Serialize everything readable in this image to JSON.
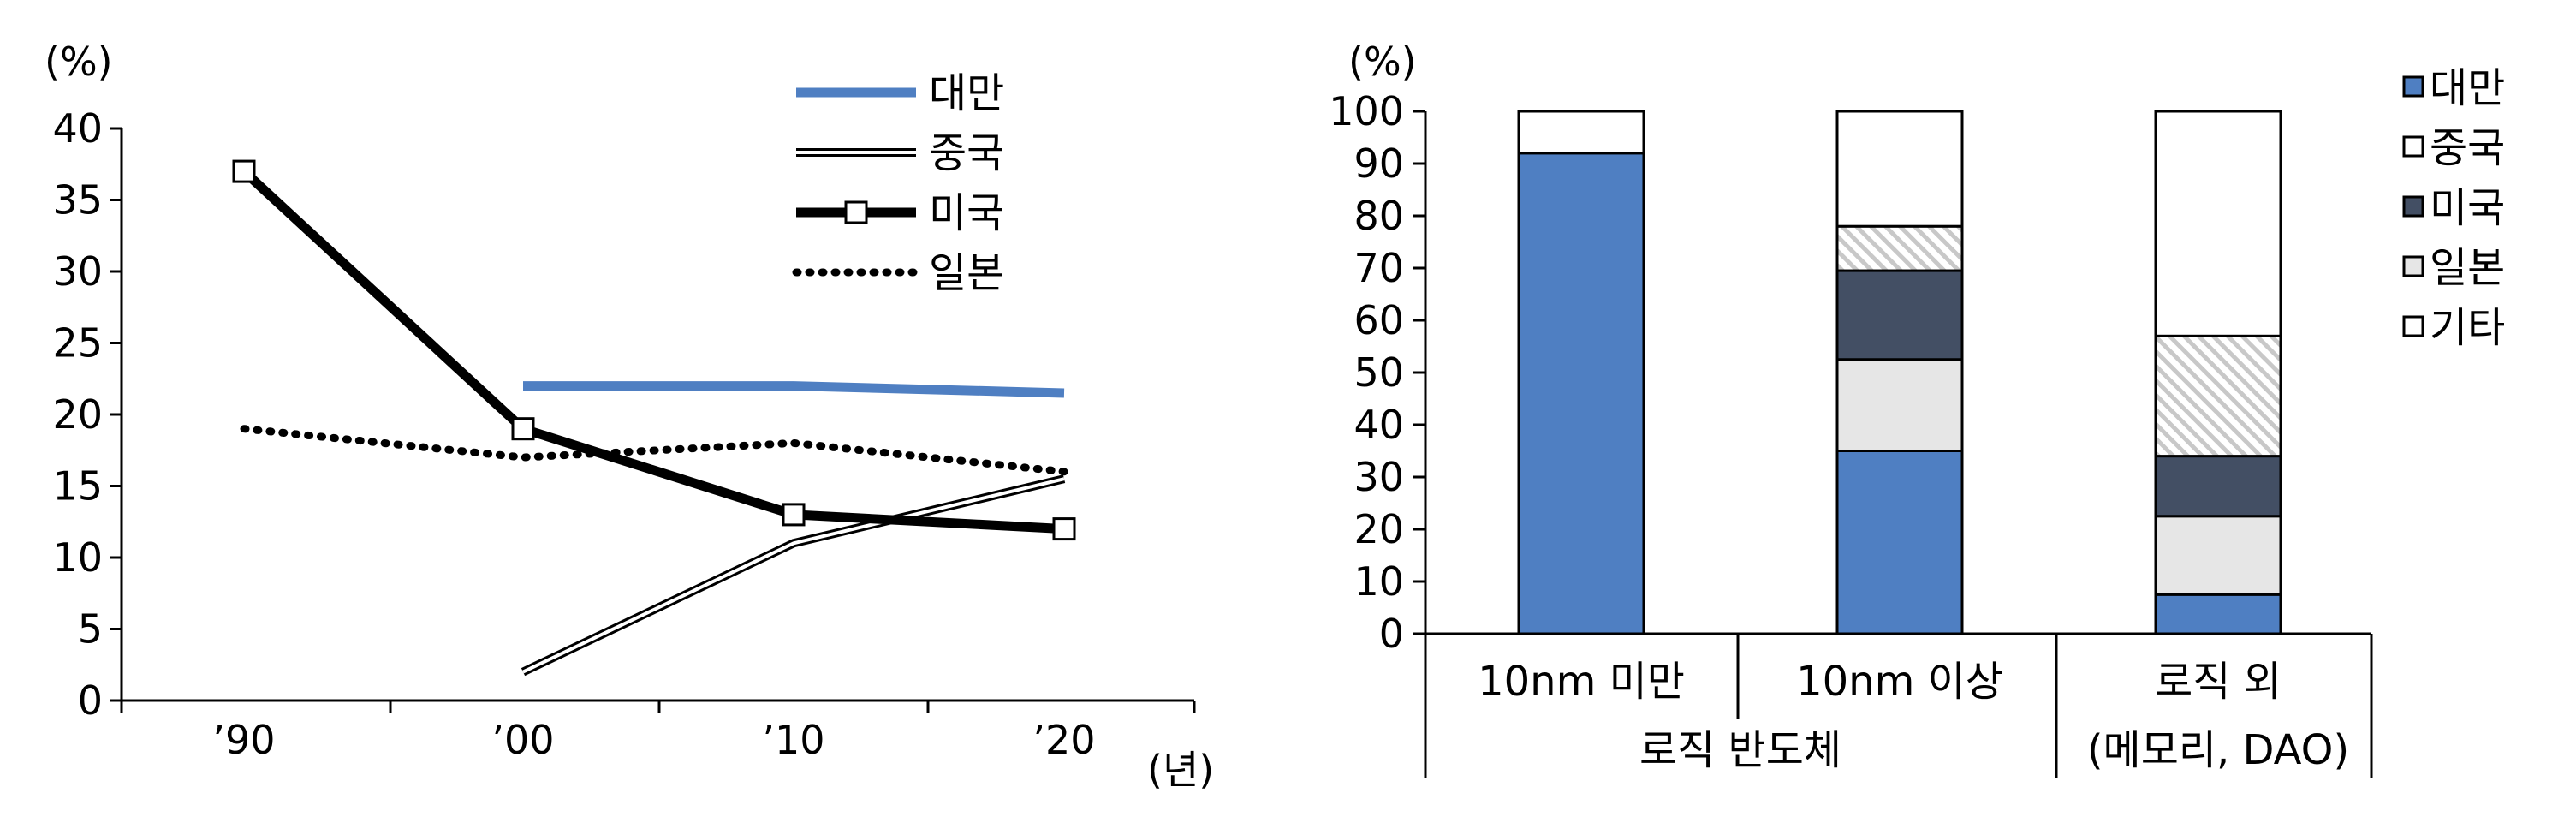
{
  "chart_data": [
    {
      "type": "line",
      "ylabel": "(%)",
      "xlabel": "(년)",
      "ylim": [
        0,
        40
      ],
      "yticks": [
        "0",
        "5",
        "10",
        "15",
        "20",
        "25",
        "30",
        "35",
        "40"
      ],
      "categories": [
        "’90",
        "’00",
        "’10",
        "’20"
      ],
      "grid": false,
      "legend_position": "top-right",
      "colors": {
        "대만": "#4f7fc2",
        "중국": "#ffffff",
        "미국": "#000000",
        "일본": "#000000"
      },
      "series": [
        {
          "name": "대만",
          "values": [
            null,
            22,
            22,
            21.5
          ]
        },
        {
          "name": "중국",
          "values": [
            null,
            2,
            11,
            15.5
          ]
        },
        {
          "name": "미국",
          "values": [
            37,
            19,
            13,
            12
          ]
        },
        {
          "name": "일본",
          "values": [
            19,
            17,
            18,
            16
          ]
        }
      ]
    },
    {
      "type": "bar",
      "stacked": true,
      "ylabel": "(%)",
      "ylim": [
        0,
        100
      ],
      "yticks": [
        "0",
        "10",
        "20",
        "30",
        "40",
        "50",
        "60",
        "70",
        "80",
        "90",
        "100"
      ],
      "categories": [
        "10nm 미만",
        "10nm 이상",
        "로직 외"
      ],
      "category_groups": [
        {
          "label": "로직 반도체",
          "members": [
            "10nm 미만",
            "10nm 이상"
          ]
        },
        {
          "label": "(메모리, DAO)",
          "members": [
            "로직 외"
          ]
        }
      ],
      "grid": false,
      "legend_position": "right",
      "colors": {
        "대만": "#4f7fc2",
        "중국": "#ffffff",
        "미국": "#434f64",
        "일본": "#e6e6e6",
        "기타": "#ffffff"
      },
      "series": [
        {
          "name": "대만",
          "values": [
            92,
            35,
            7.5
          ]
        },
        {
          "name": "중국",
          "values": [
            0,
            8.5,
            23
          ]
        },
        {
          "name": "미국",
          "values": [
            0,
            17,
            11.5
          ]
        },
        {
          "name": "일본",
          "values": [
            0,
            17.5,
            15
          ]
        },
        {
          "name": "기타",
          "values": [
            8,
            22,
            43
          ]
        }
      ]
    }
  ]
}
